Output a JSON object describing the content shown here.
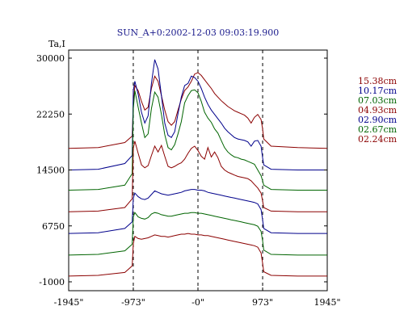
{
  "chart_data": {
    "type": "line",
    "title": "SUN_A+0:2002-12-03 09:03:19.900",
    "ylabel": "Ta,I",
    "xlabel": "",
    "x_ticks": [
      "-1945\"",
      "-973\"",
      "-0\"",
      "973\"",
      "1945\""
    ],
    "x_tick_values": [
      -1945,
      -973,
      0,
      973,
      1945
    ],
    "y_ticks": [
      "30000",
      "22250",
      "14500",
      "6750",
      "-1000"
    ],
    "y_tick_values": [
      30000,
      22250,
      14500,
      6750,
      -1000
    ],
    "xlim": [
      -1945,
      1945
    ],
    "ylim": [
      -1000,
      30000
    ],
    "vlines": [
      -973,
      0,
      973
    ],
    "grid": false,
    "legend_position": "right",
    "x": [
      -1945,
      -1500,
      -1100,
      -990,
      -973,
      -950,
      -900,
      -850,
      -800,
      -750,
      -700,
      -650,
      -600,
      -550,
      -500,
      -450,
      -400,
      -350,
      -300,
      -250,
      -200,
      -150,
      -100,
      -50,
      0,
      50,
      100,
      150,
      200,
      250,
      300,
      350,
      400,
      450,
      500,
      550,
      600,
      650,
      700,
      750,
      800,
      850,
      900,
      950,
      973,
      990,
      1100,
      1500,
      1945
    ],
    "series": [
      {
        "name": "15.38cm",
        "color": "#8b0000",
        "values": [
          17500,
          17600,
          18300,
          19200,
          23500,
          26200,
          25500,
          24000,
          22800,
          23200,
          25800,
          27500,
          26800,
          24800,
          22800,
          21200,
          20700,
          21200,
          22800,
          24300,
          25500,
          26000,
          26800,
          27800,
          28000,
          27600,
          27000,
          26400,
          25800,
          25100,
          24600,
          24100,
          23700,
          23300,
          23000,
          22700,
          22500,
          22300,
          22100,
          21700,
          21000,
          21800,
          22200,
          21500,
          20200,
          18800,
          17800,
          17600,
          17500
        ]
      },
      {
        "name": "10.17cm",
        "color": "#00008b",
        "values": [
          14500,
          14600,
          15400,
          16500,
          25500,
          26800,
          25000,
          22500,
          21000,
          22000,
          26500,
          29800,
          28500,
          24800,
          21000,
          19300,
          19000,
          19800,
          22300,
          24600,
          26200,
          26500,
          27500,
          27300,
          26800,
          25800,
          24600,
          23600,
          22800,
          22200,
          21600,
          21000,
          20300,
          19800,
          19400,
          19000,
          18800,
          18700,
          18600,
          18400,
          17800,
          18500,
          18600,
          17800,
          16200,
          15200,
          14600,
          14500,
          14500
        ]
      },
      {
        "name": "07.03cm",
        "color": "#006400",
        "values": [
          11700,
          11800,
          12400,
          14000,
          23000,
          25500,
          23200,
          21000,
          19000,
          19500,
          23000,
          25300,
          24600,
          22200,
          19400,
          17600,
          17300,
          18000,
          19500,
          21200,
          23800,
          24800,
          25500,
          25600,
          25200,
          24000,
          22500,
          21700,
          21100,
          20200,
          19600,
          18600,
          17600,
          17000,
          16600,
          16300,
          16200,
          16000,
          15900,
          15700,
          15500,
          15300,
          14500,
          13700,
          13000,
          12400,
          11800,
          11700,
          11700
        ]
      },
      {
        "name": "04.93cm",
        "color": "#8b0000",
        "values": [
          8700,
          8800,
          9300,
          10500,
          17500,
          18500,
          16800,
          15200,
          14800,
          15100,
          16500,
          17800,
          17000,
          17900,
          16400,
          15000,
          14800,
          15000,
          15300,
          15500,
          16000,
          16800,
          17500,
          17800,
          17200,
          16400,
          16000,
          17600,
          16300,
          17000,
          16200,
          15000,
          14500,
          14200,
          14000,
          13800,
          13600,
          13500,
          13400,
          13300,
          13000,
          12500,
          12000,
          11300,
          10200,
          9300,
          8800,
          8700,
          8700
        ]
      },
      {
        "name": "02.90cm",
        "color": "#00008b",
        "values": [
          5700,
          5800,
          6400,
          7300,
          10600,
          11300,
          10800,
          10500,
          10400,
          10600,
          11100,
          11600,
          11400,
          11200,
          11100,
          11000,
          11100,
          11200,
          11300,
          11400,
          11600,
          11700,
          11800,
          11800,
          11700,
          11700,
          11600,
          11400,
          11300,
          11200,
          11100,
          11000,
          10900,
          10800,
          10700,
          10600,
          10500,
          10400,
          10300,
          10200,
          10100,
          10000,
          9800,
          9000,
          7600,
          6400,
          5800,
          5700,
          5700
        ]
      },
      {
        "name": "02.67cm",
        "color": "#006400",
        "values": [
          2700,
          2800,
          3300,
          4200,
          8000,
          8600,
          8000,
          7800,
          7700,
          7900,
          8400,
          8600,
          8500,
          8300,
          8200,
          8100,
          8100,
          8200,
          8300,
          8400,
          8500,
          8500,
          8600,
          8600,
          8500,
          8500,
          8400,
          8300,
          8200,
          8100,
          8000,
          7900,
          7800,
          7700,
          7600,
          7500,
          7400,
          7300,
          7200,
          7100,
          7000,
          6900,
          6700,
          6000,
          4700,
          3400,
          2800,
          2700,
          2700
        ]
      },
      {
        "name": "02.24cm",
        "color": "#8b0000",
        "values": [
          -200,
          -100,
          300,
          1200,
          4300,
          5300,
          5000,
          4900,
          5000,
          5100,
          5300,
          5500,
          5400,
          5300,
          5300,
          5200,
          5300,
          5400,
          5500,
          5600,
          5600,
          5700,
          5600,
          5600,
          5500,
          5500,
          5400,
          5400,
          5300,
          5200,
          5100,
          5000,
          4900,
          4800,
          4700,
          4600,
          4500,
          4400,
          4300,
          4200,
          4100,
          4000,
          3800,
          3000,
          1600,
          400,
          -100,
          -200,
          -200
        ]
      }
    ]
  }
}
